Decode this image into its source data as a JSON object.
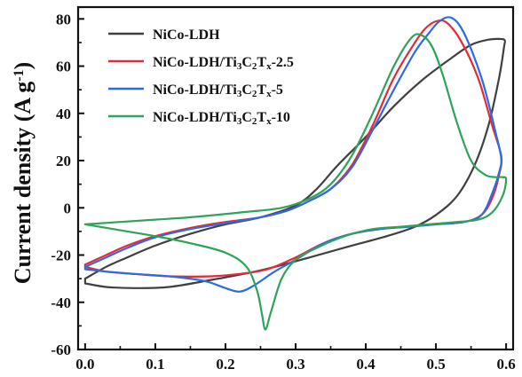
{
  "chart_data": {
    "type": "line",
    "title": "",
    "xlabel": "",
    "ylabel": {
      "main": "Current density (A g",
      "sup": "-1",
      "close": ")"
    },
    "xlim": [
      -0.01,
      0.61
    ],
    "ylim": [
      -60,
      85
    ],
    "xticks": [
      0.0,
      0.1,
      0.2,
      0.3,
      0.4,
      0.5,
      0.6
    ],
    "xtick_labels": [
      "0.0",
      "0.1",
      "0.2",
      "0.3",
      "0.4",
      "0.5",
      "0.6"
    ],
    "yticks": [
      -60,
      -40,
      -20,
      0,
      20,
      40,
      60,
      80
    ],
    "ytick_labels": [
      "-60",
      "-40",
      "-20",
      "0",
      "20",
      "40",
      "60",
      "80"
    ],
    "grid": false,
    "legend_position": "top-left",
    "series": [
      {
        "name": "NiCo-LDH",
        "legend_parts": [
          {
            "t": "NiCo-LDH"
          }
        ],
        "color": "#404040",
        "points": [
          [
            0.0,
            -32
          ],
          [
            0.03,
            -33.5
          ],
          [
            0.07,
            -34
          ],
          [
            0.12,
            -33.5
          ],
          [
            0.18,
            -30.5
          ],
          [
            0.25,
            -26.5
          ],
          [
            0.32,
            -21
          ],
          [
            0.38,
            -16
          ],
          [
            0.43,
            -12
          ],
          [
            0.47,
            -8
          ],
          [
            0.5,
            -3
          ],
          [
            0.53,
            5
          ],
          [
            0.555,
            18
          ],
          [
            0.575,
            35
          ],
          [
            0.59,
            55
          ],
          [
            0.597,
            68
          ],
          [
            0.598,
            71
          ],
          [
            0.59,
            71.5
          ],
          [
            0.575,
            71.2
          ],
          [
            0.55,
            69
          ],
          [
            0.52,
            63
          ],
          [
            0.48,
            54
          ],
          [
            0.44,
            43
          ],
          [
            0.4,
            30
          ],
          [
            0.36,
            18
          ],
          [
            0.33,
            8
          ],
          [
            0.3,
            1
          ],
          [
            0.25,
            -4
          ],
          [
            0.2,
            -7
          ],
          [
            0.15,
            -11
          ],
          [
            0.1,
            -16
          ],
          [
            0.06,
            -21
          ],
          [
            0.03,
            -25
          ],
          [
            0.0,
            -30
          ]
        ]
      },
      {
        "name": "NiCo-LDH/Ti3C2Tx-2.5",
        "legend_parts": [
          {
            "t": "NiCo-LDH/Ti"
          },
          {
            "t": "3",
            "sub": true
          },
          {
            "t": "C"
          },
          {
            "t": "2",
            "sub": true
          },
          {
            "t": "T"
          },
          {
            "t": "x",
            "sub": true
          },
          {
            "t": "-2.5"
          }
        ],
        "color": "#e8283a",
        "points": [
          [
            0.0,
            -25
          ],
          [
            0.03,
            -27
          ],
          [
            0.07,
            -28
          ],
          [
            0.12,
            -29
          ],
          [
            0.18,
            -29
          ],
          [
            0.22,
            -28
          ],
          [
            0.26,
            -26
          ],
          [
            0.3,
            -21
          ],
          [
            0.34,
            -15
          ],
          [
            0.38,
            -11
          ],
          [
            0.42,
            -9
          ],
          [
            0.46,
            -8
          ],
          [
            0.5,
            -7
          ],
          [
            0.54,
            -6
          ],
          [
            0.565,
            -3
          ],
          [
            0.58,
            4
          ],
          [
            0.59,
            14
          ],
          [
            0.593,
            22
          ],
          [
            0.58,
            35
          ],
          [
            0.56,
            55
          ],
          [
            0.535,
            71
          ],
          [
            0.515,
            78.5
          ],
          [
            0.5,
            79
          ],
          [
            0.485,
            76
          ],
          [
            0.47,
            70
          ],
          [
            0.44,
            55
          ],
          [
            0.41,
            35
          ],
          [
            0.38,
            18
          ],
          [
            0.35,
            8
          ],
          [
            0.32,
            3
          ],
          [
            0.29,
            -1
          ],
          [
            0.25,
            -4
          ],
          [
            0.2,
            -6
          ],
          [
            0.15,
            -8.5
          ],
          [
            0.1,
            -12
          ],
          [
            0.06,
            -16
          ],
          [
            0.03,
            -20
          ],
          [
            0.0,
            -24
          ]
        ]
      },
      {
        "name": "NiCo-LDH/Ti3C2Tx-5",
        "legend_parts": [
          {
            "t": "NiCo-LDH/Ti"
          },
          {
            "t": "3",
            "sub": true
          },
          {
            "t": "C"
          },
          {
            "t": "2",
            "sub": true
          },
          {
            "t": "T"
          },
          {
            "t": "x",
            "sub": true
          },
          {
            "t": "-5"
          }
        ],
        "color": "#2a6de0",
        "points": [
          [
            0.0,
            -26
          ],
          [
            0.03,
            -27
          ],
          [
            0.07,
            -28
          ],
          [
            0.12,
            -29
          ],
          [
            0.17,
            -31
          ],
          [
            0.2,
            -34
          ],
          [
            0.22,
            -35.5
          ],
          [
            0.24,
            -33
          ],
          [
            0.27,
            -27
          ],
          [
            0.3,
            -22
          ],
          [
            0.34,
            -15
          ],
          [
            0.38,
            -11
          ],
          [
            0.42,
            -9
          ],
          [
            0.46,
            -8
          ],
          [
            0.5,
            -7
          ],
          [
            0.54,
            -6
          ],
          [
            0.565,
            -3
          ],
          [
            0.58,
            6
          ],
          [
            0.59,
            15
          ],
          [
            0.593,
            21
          ],
          [
            0.585,
            32
          ],
          [
            0.565,
            55
          ],
          [
            0.54,
            74
          ],
          [
            0.522,
            80.5
          ],
          [
            0.505,
            79
          ],
          [
            0.49,
            74
          ],
          [
            0.47,
            66
          ],
          [
            0.44,
            50
          ],
          [
            0.41,
            33
          ],
          [
            0.38,
            17
          ],
          [
            0.35,
            8
          ],
          [
            0.32,
            3
          ],
          [
            0.29,
            -1
          ],
          [
            0.25,
            -4
          ],
          [
            0.2,
            -6.5
          ],
          [
            0.15,
            -9
          ],
          [
            0.1,
            -12.5
          ],
          [
            0.06,
            -17
          ],
          [
            0.03,
            -21
          ],
          [
            0.0,
            -25
          ]
        ]
      },
      {
        "name": "NiCo-LDH/Ti3C2Tx-10",
        "legend_parts": [
          {
            "t": "NiCo-LDH/Ti"
          },
          {
            "t": "3",
            "sub": true
          },
          {
            "t": "C"
          },
          {
            "t": "2",
            "sub": true
          },
          {
            "t": "T"
          },
          {
            "t": "x",
            "sub": true
          },
          {
            "t": "-10"
          }
        ],
        "color": "#2ea35a",
        "points": [
          [
            0.0,
            -7
          ],
          [
            0.05,
            -9.5
          ],
          [
            0.1,
            -12
          ],
          [
            0.15,
            -15
          ],
          [
            0.2,
            -19
          ],
          [
            0.23,
            -25
          ],
          [
            0.245,
            -35
          ],
          [
            0.252,
            -45
          ],
          [
            0.257,
            -51.5
          ],
          [
            0.265,
            -44
          ],
          [
            0.28,
            -30
          ],
          [
            0.3,
            -22
          ],
          [
            0.33,
            -17
          ],
          [
            0.37,
            -12
          ],
          [
            0.41,
            -9
          ],
          [
            0.45,
            -8
          ],
          [
            0.49,
            -7
          ],
          [
            0.53,
            -6
          ],
          [
            0.56,
            -5
          ],
          [
            0.58,
            -2
          ],
          [
            0.595,
            5
          ],
          [
            0.6,
            12
          ],
          [
            0.595,
            13
          ],
          [
            0.585,
            13
          ],
          [
            0.57,
            14
          ],
          [
            0.55,
            20
          ],
          [
            0.53,
            36
          ],
          [
            0.51,
            56
          ],
          [
            0.495,
            68
          ],
          [
            0.48,
            73
          ],
          [
            0.465,
            72
          ],
          [
            0.44,
            60
          ],
          [
            0.41,
            40
          ],
          [
            0.38,
            22
          ],
          [
            0.35,
            10
          ],
          [
            0.32,
            4
          ],
          [
            0.28,
            0
          ],
          [
            0.22,
            -2
          ],
          [
            0.15,
            -4
          ],
          [
            0.1,
            -5
          ],
          [
            0.05,
            -6
          ],
          [
            0.0,
            -7
          ]
        ]
      }
    ]
  }
}
